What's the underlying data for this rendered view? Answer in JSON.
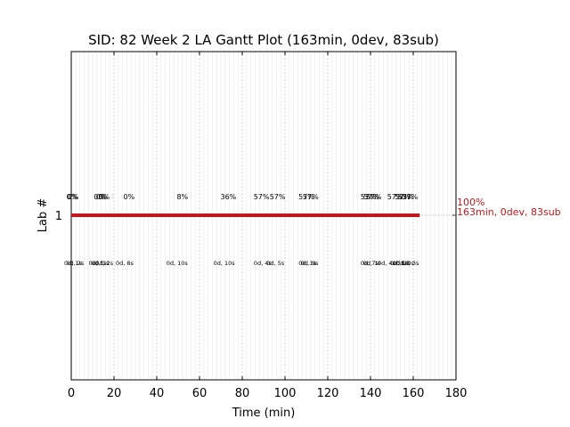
{
  "chart_data": {
    "type": "gantt",
    "title": "SID: 82 Week 2 LA Gantt Plot (163min, 0dev, 83sub)",
    "xlabel": "Time (min)",
    "ylabel": "Lab #",
    "xlim": [
      0,
      180
    ],
    "xticks": [
      "0",
      "20",
      "40",
      "60",
      "80",
      "100",
      "120",
      "140",
      "160",
      "180"
    ],
    "yticks": [
      "1"
    ],
    "grid": true,
    "bar": {
      "lab": 1,
      "start": 0,
      "end": 163,
      "color": "#c0181c"
    },
    "end_annotation": {
      "line1": "100%",
      "line2": "163min, 0dev, 83sub",
      "color": "#c0181c"
    },
    "percent_labels": [
      {
        "x": 0.4,
        "text": "0%"
      },
      {
        "x": 0.9,
        "text": "0%"
      },
      {
        "x": 13.2,
        "text": "0%"
      },
      {
        "x": 14.2,
        "text": "0%"
      },
      {
        "x": 15.3,
        "text": "0%"
      },
      {
        "x": 27,
        "text": "0%"
      },
      {
        "x": 52,
        "text": "8%"
      },
      {
        "x": 73.5,
        "text": "36%"
      },
      {
        "x": 89,
        "text": "57%"
      },
      {
        "x": 96.5,
        "text": "57%"
      },
      {
        "x": 110,
        "text": "57%"
      },
      {
        "x": 112,
        "text": "57%"
      },
      {
        "x": 139,
        "text": "57%"
      },
      {
        "x": 140.5,
        "text": "57%"
      },
      {
        "x": 141.5,
        "text": "57%"
      },
      {
        "x": 151.5,
        "text": "57%"
      },
      {
        "x": 155,
        "text": "57%"
      },
      {
        "x": 156.5,
        "text": "57%"
      },
      {
        "x": 158.5,
        "text": "57%"
      }
    ],
    "duration_labels": [
      {
        "x": 0.8,
        "text": "0d, 1s"
      },
      {
        "x": 1.8,
        "text": "0d, 2s"
      },
      {
        "x": 12.3,
        "text": "0d, 1s"
      },
      {
        "x": 13.5,
        "text": "0d, 1s"
      },
      {
        "x": 15.5,
        "text": "0d, 2s"
      },
      {
        "x": 25,
        "text": "0d, 8s"
      },
      {
        "x": 49.5,
        "text": "0d, 10s"
      },
      {
        "x": 71.5,
        "text": "0d, 10s"
      },
      {
        "x": 89.5,
        "text": "0d, 4s"
      },
      {
        "x": 95.5,
        "text": "0d, 5s"
      },
      {
        "x": 110.5,
        "text": "0d, 1s"
      },
      {
        "x": 111.5,
        "text": "0d, 9s"
      },
      {
        "x": 139.5,
        "text": "0d, 7s"
      },
      {
        "x": 140.7,
        "text": "0d, 1s"
      },
      {
        "x": 147.5,
        "text": "0d, 4s"
      },
      {
        "x": 153.3,
        "text": "0d, 1s"
      },
      {
        "x": 154.5,
        "text": "0d, 2s"
      },
      {
        "x": 156.2,
        "text": "0d, 0s"
      },
      {
        "x": 158.5,
        "text": "0d, 3s"
      }
    ]
  }
}
